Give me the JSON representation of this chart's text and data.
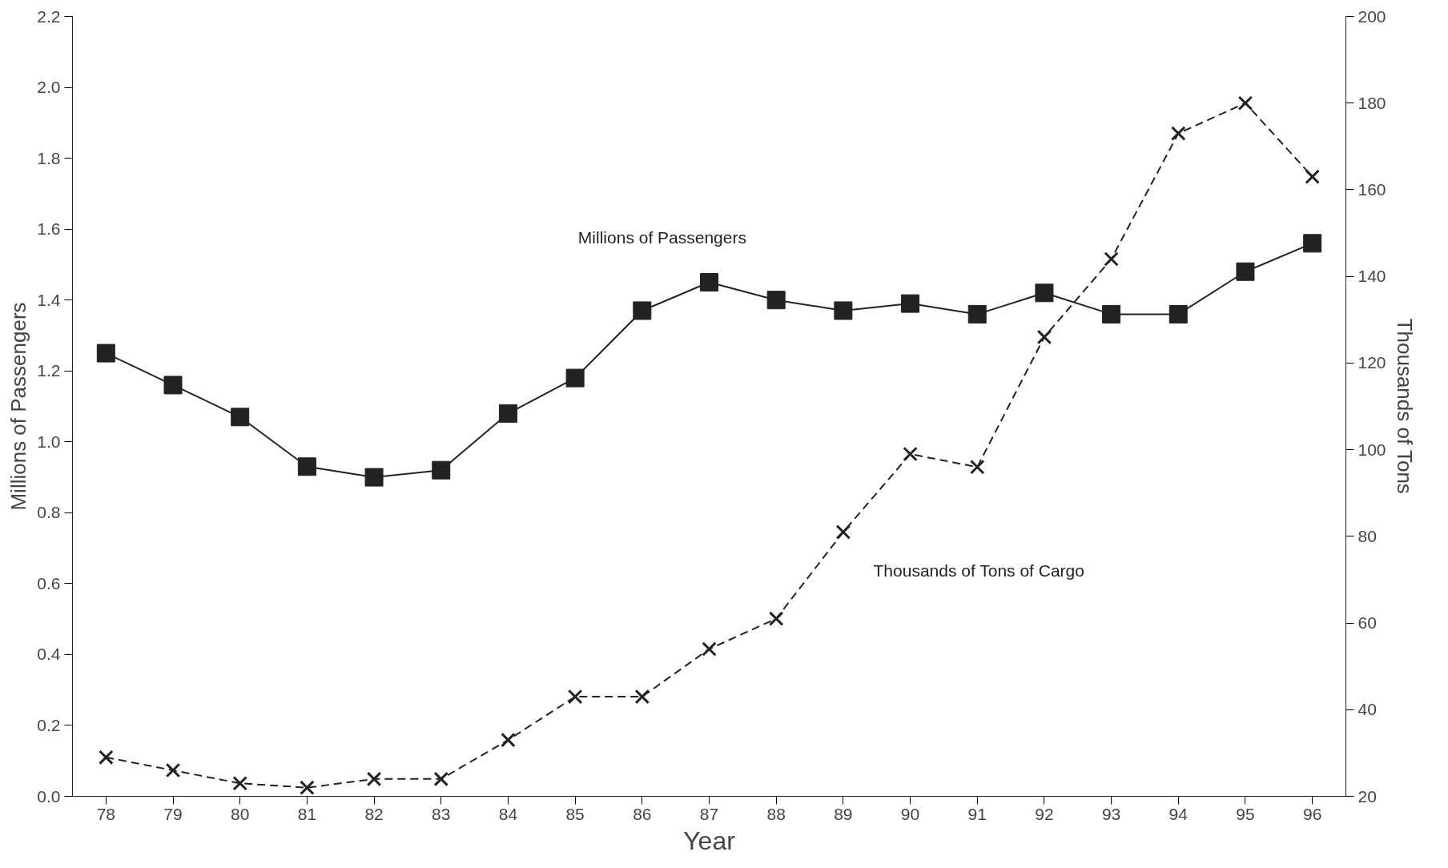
{
  "chart_data": {
    "type": "line",
    "xlabel": "Year",
    "ylabel": "Millions of Passengers",
    "y2label": "Thousands of Tons",
    "categories": [
      "78",
      "79",
      "80",
      "81",
      "82",
      "83",
      "84",
      "85",
      "86",
      "87",
      "88",
      "89",
      "90",
      "91",
      "92",
      "93",
      "94",
      "95",
      "96"
    ],
    "ylim": [
      0,
      2.2
    ],
    "yticks": [
      {
        "value": 0,
        "label": "0.0"
      },
      {
        "value": 0.2,
        "label": "0.2"
      },
      {
        "value": 0.4,
        "label": "0.4"
      },
      {
        "value": 0.6,
        "label": "0.6"
      },
      {
        "value": 0.8,
        "label": "0.8"
      },
      {
        "value": 1,
        "label": "1.0"
      },
      {
        "value": 1.2,
        "label": "1.2"
      },
      {
        "value": 1.4,
        "label": "1.4"
      },
      {
        "value": 1.6,
        "label": "1.6"
      },
      {
        "value": 1.8,
        "label": "1.8"
      },
      {
        "value": 2,
        "label": "2.0"
      },
      {
        "value": 2.2,
        "label": "2.2"
      }
    ],
    "y2lim": [
      20,
      200
    ],
    "y2ticks": [
      20,
      40,
      60,
      80,
      100,
      120,
      140,
      160,
      180,
      200
    ],
    "grid": false,
    "series": [
      {
        "name": "Millions of Passengers",
        "color": "#222222",
        "marker": "square",
        "line_style": "solid",
        "values": [
          1.25,
          1.16,
          1.07,
          0.93,
          0.9,
          0.92,
          1.08,
          1.18,
          1.37,
          1.45,
          1.4,
          1.37,
          1.39,
          1.36,
          1.42,
          1.36,
          1.36,
          1.48,
          1.56
        ]
      },
      {
        "name": "Thousands of Tons of Cargo",
        "color": "#222222",
        "marker": "cross",
        "line_style": "dashed",
        "axis": "y2",
        "values": [
          29,
          26,
          23,
          22,
          24,
          24,
          33,
          43,
          43,
          54,
          61,
          81,
          99,
          96,
          126,
          144,
          173,
          180,
          163
        ]
      }
    ]
  }
}
